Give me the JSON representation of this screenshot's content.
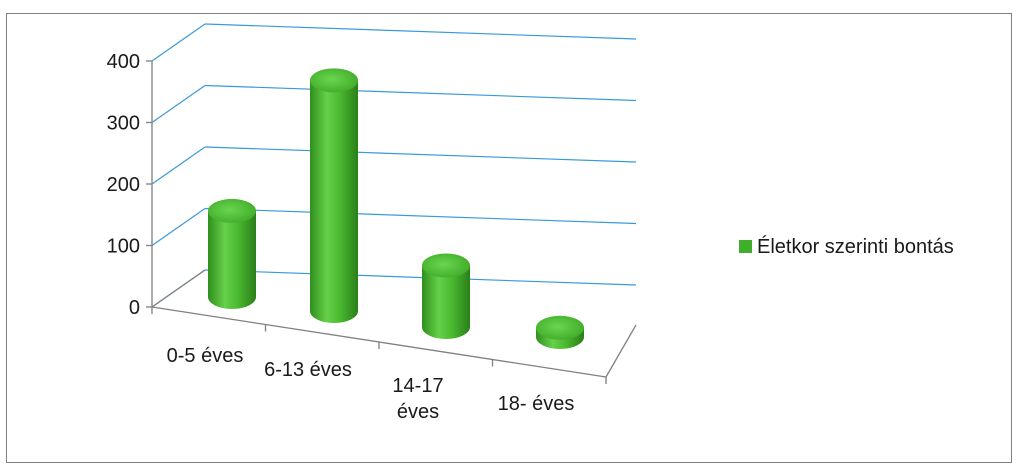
{
  "chart_data": {
    "type": "bar",
    "style": "3d-cylinder",
    "categories": [
      [
        "0-5 éves"
      ],
      [
        "6-13 éves"
      ],
      [
        "14-17",
        "éves"
      ],
      [
        "18- éves"
      ]
    ],
    "series": [
      {
        "name": "Életkor szerinti bontás",
        "values": [
          140,
          375,
          100,
          15
        ],
        "color": "#3fae2a"
      }
    ],
    "y_ticks": [
      "0",
      "100",
      "200",
      "300",
      "400"
    ],
    "ylim": [
      0,
      400
    ],
    "xlabel": "",
    "ylabel": "",
    "title": "",
    "grid": true,
    "legend_position": "right"
  },
  "colors": {
    "gridline": "#3a9ad9",
    "axis": "#808080",
    "bar_base": "#3fae2a",
    "frame": "#7f7f7f"
  }
}
